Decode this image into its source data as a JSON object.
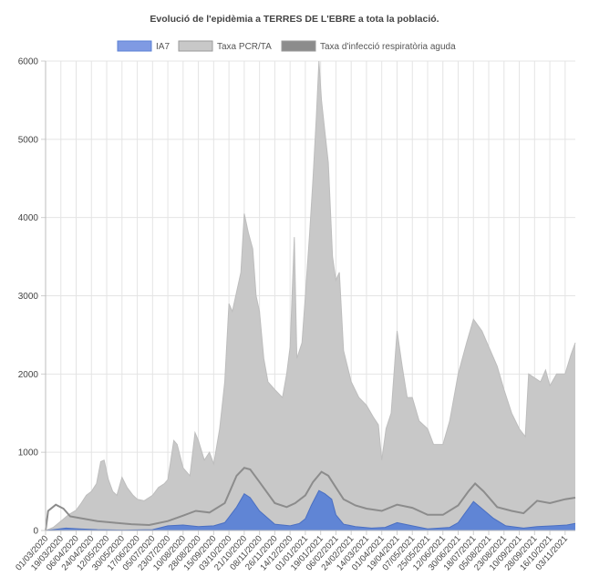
{
  "chart_data": {
    "type": "area",
    "title": "Evolució de l'epidèmia a TERRES DE L'EBRE a tota la població.",
    "xlabel": "",
    "ylabel": "",
    "ylim": [
      0,
      6000
    ],
    "yticks": [
      0,
      1000,
      2000,
      3000,
      4000,
      5000,
      6000
    ],
    "grid": true,
    "legend_position": "top-center",
    "x_tick_labels": [
      "01/03/2020",
      "19/03/2020",
      "06/04/2020",
      "24/04/2020",
      "12/05/2020",
      "30/05/2020",
      "17/06/2020",
      "05/07/2020",
      "23/07/2020",
      "10/08/2020",
      "28/08/2020",
      "15/09/2020",
      "03/10/2020",
      "21/10/2020",
      "08/11/2020",
      "26/11/2020",
      "14/12/2020",
      "01/01/2021",
      "19/01/2021",
      "06/02/2021",
      "24/02/2021",
      "14/03/2021",
      "01/04/2021",
      "19/04/2021",
      "07/05/2021",
      "25/05/2021",
      "12/06/2021",
      "30/06/2021",
      "18/07/2021",
      "05/08/2021",
      "23/08/2021",
      "10/09/2021",
      "28/09/2021",
      "16/10/2021",
      "03/11/2021"
    ],
    "x_start": "2020-03-01",
    "x_end": "2021-11-15",
    "series": [
      {
        "name": "Taxa PCR/TA",
        "color": "#c8c8c8",
        "style": "area",
        "points": [
          [
            "2020-03-01",
            0
          ],
          [
            "2020-03-10",
            40
          ],
          [
            "2020-03-19",
            120
          ],
          [
            "2020-03-28",
            200
          ],
          [
            "2020-04-06",
            260
          ],
          [
            "2020-04-12",
            350
          ],
          [
            "2020-04-18",
            450
          ],
          [
            "2020-04-24",
            500
          ],
          [
            "2020-04-30",
            600
          ],
          [
            "2020-05-05",
            880
          ],
          [
            "2020-05-09",
            900
          ],
          [
            "2020-05-14",
            650
          ],
          [
            "2020-05-19",
            500
          ],
          [
            "2020-05-24",
            450
          ],
          [
            "2020-05-30",
            680
          ],
          [
            "2020-06-05",
            550
          ],
          [
            "2020-06-12",
            450
          ],
          [
            "2020-06-17",
            400
          ],
          [
            "2020-06-25",
            380
          ],
          [
            "2020-07-05",
            450
          ],
          [
            "2020-07-12",
            550
          ],
          [
            "2020-07-19",
            600
          ],
          [
            "2020-07-23",
            650
          ],
          [
            "2020-07-30",
            1150
          ],
          [
            "2020-08-03",
            1100
          ],
          [
            "2020-08-10",
            800
          ],
          [
            "2020-08-18",
            700
          ],
          [
            "2020-08-24",
            1250
          ],
          [
            "2020-08-28",
            1150
          ],
          [
            "2020-09-04",
            900
          ],
          [
            "2020-09-10",
            1000
          ],
          [
            "2020-09-15",
            850
          ],
          [
            "2020-09-22",
            1300
          ],
          [
            "2020-09-28",
            1900
          ],
          [
            "2020-10-03",
            2900
          ],
          [
            "2020-10-07",
            2800
          ],
          [
            "2020-10-12",
            3050
          ],
          [
            "2020-10-17",
            3300
          ],
          [
            "2020-10-21",
            4050
          ],
          [
            "2020-10-26",
            3800
          ],
          [
            "2020-10-31",
            3600
          ],
          [
            "2020-11-04",
            3000
          ],
          [
            "2020-11-08",
            2800
          ],
          [
            "2020-11-13",
            2200
          ],
          [
            "2020-11-18",
            1900
          ],
          [
            "2020-11-26",
            1800
          ],
          [
            "2020-12-05",
            1700
          ],
          [
            "2020-12-10",
            2000
          ],
          [
            "2020-12-14",
            2350
          ],
          [
            "2020-12-19",
            3750
          ],
          [
            "2020-12-22",
            2200
          ],
          [
            "2020-12-28",
            2400
          ],
          [
            "2021-01-01",
            3000
          ],
          [
            "2021-01-06",
            3800
          ],
          [
            "2021-01-10",
            4500
          ],
          [
            "2021-01-14",
            5300
          ],
          [
            "2021-01-17",
            6000
          ],
          [
            "2021-01-20",
            5500
          ],
          [
            "2021-01-24",
            5100
          ],
          [
            "2021-01-28",
            4700
          ],
          [
            "2021-02-02",
            3500
          ],
          [
            "2021-02-06",
            3200
          ],
          [
            "2021-02-10",
            3300
          ],
          [
            "2021-02-15",
            2300
          ],
          [
            "2021-02-24",
            1900
          ],
          [
            "2021-03-05",
            1700
          ],
          [
            "2021-03-14",
            1600
          ],
          [
            "2021-03-22",
            1450
          ],
          [
            "2021-03-28",
            1350
          ],
          [
            "2021-04-01",
            900
          ],
          [
            "2021-04-06",
            1300
          ],
          [
            "2021-04-12",
            1500
          ],
          [
            "2021-04-19",
            2550
          ],
          [
            "2021-04-25",
            2100
          ],
          [
            "2021-05-01",
            1700
          ],
          [
            "2021-05-07",
            1700
          ],
          [
            "2021-05-15",
            1400
          ],
          [
            "2021-05-25",
            1300
          ],
          [
            "2021-06-01",
            1100
          ],
          [
            "2021-06-12",
            1100
          ],
          [
            "2021-06-20",
            1400
          ],
          [
            "2021-06-30",
            2000
          ],
          [
            "2021-07-10",
            2400
          ],
          [
            "2021-07-18",
            2700
          ],
          [
            "2021-07-28",
            2550
          ],
          [
            "2021-08-05",
            2350
          ],
          [
            "2021-08-15",
            2100
          ],
          [
            "2021-08-23",
            1800
          ],
          [
            "2021-09-01",
            1500
          ],
          [
            "2021-09-10",
            1300
          ],
          [
            "2021-09-17",
            1200
          ],
          [
            "2021-09-21",
            2000
          ],
          [
            "2021-09-28",
            1950
          ],
          [
            "2021-10-05",
            1900
          ],
          [
            "2021-10-11",
            2050
          ],
          [
            "2021-10-16",
            1850
          ],
          [
            "2021-10-24",
            2000
          ],
          [
            "2021-11-03",
            2000
          ],
          [
            "2021-11-10",
            2250
          ],
          [
            "2021-11-15",
            2400
          ]
        ]
      },
      {
        "name": "Taxa d'infecció respiratòria aguda",
        "color": "#8c8c8c",
        "style": "line",
        "points": [
          [
            "2020-03-01",
            0
          ],
          [
            "2020-03-04",
            250
          ],
          [
            "2020-03-13",
            330
          ],
          [
            "2020-03-22",
            280
          ],
          [
            "2020-03-30",
            180
          ],
          [
            "2020-04-15",
            150
          ],
          [
            "2020-05-01",
            120
          ],
          [
            "2020-05-20",
            100
          ],
          [
            "2020-06-10",
            80
          ],
          [
            "2020-07-01",
            70
          ],
          [
            "2020-07-23",
            120
          ],
          [
            "2020-08-10",
            190
          ],
          [
            "2020-08-25",
            250
          ],
          [
            "2020-09-10",
            230
          ],
          [
            "2020-09-28",
            350
          ],
          [
            "2020-10-12",
            700
          ],
          [
            "2020-10-21",
            800
          ],
          [
            "2020-10-28",
            780
          ],
          [
            "2020-11-08",
            620
          ],
          [
            "2020-11-26",
            350
          ],
          [
            "2020-12-10",
            300
          ],
          [
            "2020-12-20",
            350
          ],
          [
            "2021-01-01",
            450
          ],
          [
            "2021-01-10",
            620
          ],
          [
            "2021-01-20",
            750
          ],
          [
            "2021-01-28",
            700
          ],
          [
            "2021-02-06",
            550
          ],
          [
            "2021-02-15",
            400
          ],
          [
            "2021-03-01",
            320
          ],
          [
            "2021-03-14",
            280
          ],
          [
            "2021-04-01",
            250
          ],
          [
            "2021-04-19",
            330
          ],
          [
            "2021-05-07",
            290
          ],
          [
            "2021-05-25",
            200
          ],
          [
            "2021-06-12",
            200
          ],
          [
            "2021-06-30",
            320
          ],
          [
            "2021-07-12",
            500
          ],
          [
            "2021-07-20",
            600
          ],
          [
            "2021-07-30",
            500
          ],
          [
            "2021-08-15",
            300
          ],
          [
            "2021-09-01",
            250
          ],
          [
            "2021-09-15",
            220
          ],
          [
            "2021-10-01",
            380
          ],
          [
            "2021-10-16",
            350
          ],
          [
            "2021-11-03",
            400
          ],
          [
            "2021-11-15",
            420
          ]
        ]
      },
      {
        "name": "IA7",
        "color": "#5b82d6",
        "style": "area",
        "points": [
          [
            "2020-03-01",
            0
          ],
          [
            "2020-03-10",
            10
          ],
          [
            "2020-03-25",
            30
          ],
          [
            "2020-04-10",
            20
          ],
          [
            "2020-05-01",
            10
          ],
          [
            "2020-06-01",
            5
          ],
          [
            "2020-07-05",
            10
          ],
          [
            "2020-07-23",
            60
          ],
          [
            "2020-08-10",
            70
          ],
          [
            "2020-08-28",
            50
          ],
          [
            "2020-09-15",
            60
          ],
          [
            "2020-09-28",
            100
          ],
          [
            "2020-10-03",
            170
          ],
          [
            "2020-10-12",
            300
          ],
          [
            "2020-10-21",
            470
          ],
          [
            "2020-10-28",
            420
          ],
          [
            "2020-11-08",
            250
          ],
          [
            "2020-11-26",
            80
          ],
          [
            "2020-12-14",
            60
          ],
          [
            "2020-12-25",
            90
          ],
          [
            "2021-01-01",
            150
          ],
          [
            "2021-01-08",
            320
          ],
          [
            "2021-01-17",
            510
          ],
          [
            "2021-01-24",
            470
          ],
          [
            "2021-02-01",
            400
          ],
          [
            "2021-02-06",
            200
          ],
          [
            "2021-02-15",
            80
          ],
          [
            "2021-03-01",
            50
          ],
          [
            "2021-03-20",
            30
          ],
          [
            "2021-04-05",
            40
          ],
          [
            "2021-04-19",
            100
          ],
          [
            "2021-05-07",
            60
          ],
          [
            "2021-05-25",
            20
          ],
          [
            "2021-06-20",
            40
          ],
          [
            "2021-06-30",
            100
          ],
          [
            "2021-07-10",
            250
          ],
          [
            "2021-07-18",
            370
          ],
          [
            "2021-07-28",
            280
          ],
          [
            "2021-08-10",
            160
          ],
          [
            "2021-08-25",
            60
          ],
          [
            "2021-09-15",
            30
          ],
          [
            "2021-10-01",
            50
          ],
          [
            "2021-10-20",
            60
          ],
          [
            "2021-11-05",
            70
          ],
          [
            "2021-11-15",
            90
          ]
        ]
      }
    ]
  }
}
